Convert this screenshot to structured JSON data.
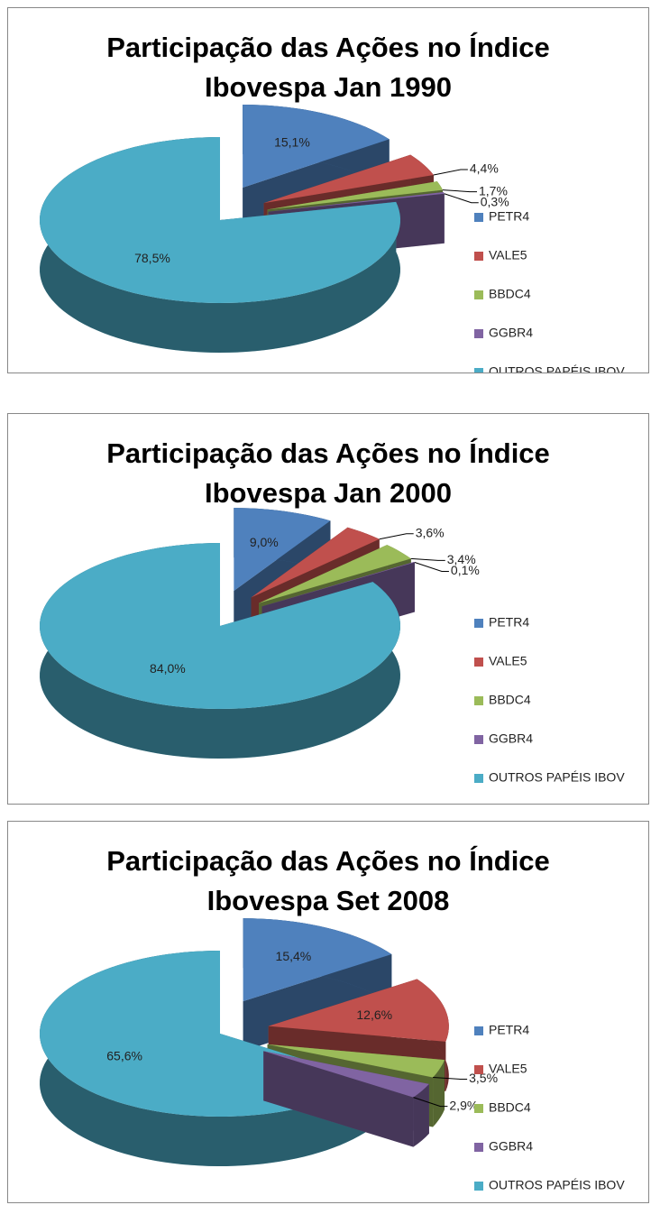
{
  "chart_data": [
    {
      "type": "pie3d",
      "title": "Participação das Ações no Índice Ibovespa Jan 1990",
      "categories": [
        "PETR4",
        "VALE5",
        "BBDC4",
        "GGBR4",
        "OUTROS PAPÉIS IBOV"
      ],
      "values": [
        15.1,
        4.4,
        1.7,
        0.3,
        78.5
      ],
      "value_labels": [
        "15,1%",
        "4,4%",
        "1,7%",
        "0,3%",
        "78,5%"
      ],
      "colors": [
        "#4f81bd",
        "#c0504d",
        "#9bbb59",
        "#8064a2",
        "#4bacc6"
      ],
      "legend": "right"
    },
    {
      "type": "pie3d",
      "title": "Participação das Ações no Índice Ibovespa Jan 2000",
      "categories": [
        "PETR4",
        "VALE5",
        "BBDC4",
        "GGBR4",
        "OUTROS PAPÉIS IBOV"
      ],
      "values": [
        9.0,
        3.6,
        3.4,
        0.1,
        84.0
      ],
      "value_labels": [
        "9,0%",
        "3,6%",
        "3,4%",
        "0,1%",
        "84,0%"
      ],
      "colors": [
        "#4f81bd",
        "#c0504d",
        "#9bbb59",
        "#8064a2",
        "#4bacc6"
      ],
      "legend": "right"
    },
    {
      "type": "pie3d",
      "title": "Participação das Ações no Índice Ibovespa Set 2008",
      "categories": [
        "PETR4",
        "VALE5",
        "BBDC4",
        "GGBR4",
        "OUTROS PAPÉIS IBOV"
      ],
      "values": [
        15.4,
        12.6,
        3.5,
        2.9,
        65.6
      ],
      "value_labels": [
        "15,4%",
        "12,6%",
        "3,5%",
        "2,9%",
        "65,6%"
      ],
      "colors": [
        "#4f81bd",
        "#c0504d",
        "#9bbb59",
        "#8064a2",
        "#4bacc6"
      ],
      "legend": "right"
    }
  ]
}
